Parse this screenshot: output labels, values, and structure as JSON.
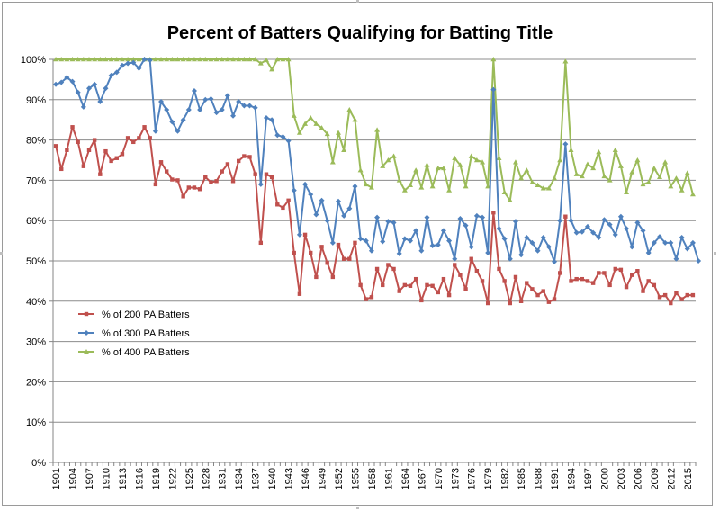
{
  "chart_data": {
    "type": "line",
    "title": "Percent of Batters Qualifying for Batting Title",
    "xlabel": "",
    "ylabel": "",
    "ylim": [
      0,
      100
    ],
    "y_ticks": [
      "0%",
      "10%",
      "20%",
      "30%",
      "40%",
      "50%",
      "60%",
      "70%",
      "80%",
      "90%",
      "100%"
    ],
    "x_tick_labels": [
      "1901",
      "1904",
      "1907",
      "1910",
      "1913",
      "1916",
      "1919",
      "1922",
      "1925",
      "1928",
      "1931",
      "1934",
      "1937",
      "1940",
      "1943",
      "1946",
      "1949",
      "1952",
      "1955",
      "1958",
      "1961",
      "1964",
      "1967",
      "1970",
      "1973",
      "1976",
      "1979",
      "1982",
      "1985",
      "1988",
      "1991",
      "1994",
      "1997",
      "2000",
      "2003",
      "2006",
      "2009",
      "2012",
      "2015"
    ],
    "grid": "horizontal",
    "legend_position": "left-middle",
    "x_start": 1901,
    "x_end": 2017,
    "series": [
      {
        "name": "% of 200 PA Batters",
        "color": "#c0504d",
        "marker": "square",
        "values": [
          78.5,
          72.8,
          77.5,
          83.2,
          79.5,
          73.5,
          77.5,
          80.0,
          71.5,
          77.2,
          74.8,
          75.5,
          76.5,
          80.5,
          79.5,
          80.5,
          83.2,
          80.5,
          69.0,
          74.5,
          72.2,
          70.2,
          70.0,
          66.0,
          68.2,
          68.2,
          67.8,
          70.8,
          69.5,
          69.8,
          72.2,
          74.0,
          69.8,
          74.8,
          76.0,
          75.8,
          71.5,
          54.5,
          71.5,
          70.8,
          64.0,
          63.2,
          65.0,
          52.0,
          41.8,
          56.5,
          52.0,
          46.0,
          53.5,
          49.5,
          46.0,
          54.0,
          50.5,
          50.5,
          54.5,
          44.0,
          40.5,
          41.0,
          48.0,
          44.0,
          49.0,
          48.0,
          42.5,
          44.0,
          43.8,
          45.5,
          40.2,
          44.0,
          43.8,
          42.2,
          45.5,
          41.5,
          49.0,
          46.5,
          43.0,
          50.5,
          47.5,
          45.0,
          39.5,
          62.0,
          48.0,
          45.0,
          39.5,
          46.0,
          40.0,
          44.5,
          43.0,
          41.5,
          42.5,
          39.8,
          40.5,
          47.0,
          61.0,
          45.0,
          45.5,
          45.5,
          45.0,
          44.5,
          47.0,
          47.0,
          44.0,
          48.0,
          47.8,
          43.5,
          46.5,
          47.5,
          42.5,
          45.0,
          44.0,
          41.0,
          41.5,
          39.5,
          42.0,
          40.5,
          41.5,
          41.5
        ]
      },
      {
        "name": "% of 300 PA Batters",
        "color": "#4f81bd",
        "marker": "diamond",
        "values": [
          93.8,
          94.3,
          95.5,
          94.5,
          91.8,
          88.2,
          92.8,
          93.8,
          89.5,
          92.8,
          96.0,
          96.8,
          98.5,
          99.0,
          99.2,
          97.8,
          100.0,
          99.8,
          82.2,
          89.5,
          87.5,
          84.5,
          82.2,
          85.0,
          87.5,
          92.2,
          87.5,
          90.0,
          90.2,
          86.8,
          87.5,
          91.0,
          86.0,
          89.5,
          88.5,
          88.5,
          88.0,
          69.0,
          85.5,
          85.0,
          81.2,
          80.8,
          79.8,
          67.5,
          56.5,
          69.0,
          66.5,
          61.5,
          65.0,
          60.0,
          54.5,
          64.8,
          61.2,
          63.0,
          68.5,
          55.5,
          55.0,
          52.5,
          60.8,
          54.8,
          59.8,
          59.5,
          51.8,
          55.5,
          55.0,
          57.5,
          52.5,
          60.8,
          53.8,
          54.0,
          57.5,
          55.0,
          50.5,
          60.5,
          58.8,
          53.5,
          61.2,
          60.8,
          52.0,
          92.5,
          58.0,
          55.5,
          50.5,
          59.8,
          51.5,
          55.8,
          54.5,
          52.5,
          55.8,
          53.5,
          49.8,
          60.0,
          79.0,
          60.0,
          57.0,
          57.2,
          58.5,
          57.0,
          55.8,
          60.2,
          59.0,
          56.5,
          61.0,
          58.0,
          53.5,
          59.5,
          57.5,
          52.0,
          54.5,
          56.0,
          54.5,
          54.5,
          50.5,
          55.8,
          53.0,
          54.5,
          50.0
        ]
      },
      {
        "name": "% of 400 PA Batters",
        "color": "#9bbb59",
        "marker": "triangle",
        "values": [
          100,
          100,
          100,
          100,
          100,
          100,
          100,
          100,
          100,
          100,
          100,
          100,
          100,
          100,
          100,
          100,
          100,
          100,
          100,
          100,
          100,
          100,
          100,
          100,
          100,
          100,
          100,
          100,
          100,
          100,
          100,
          100,
          100,
          100,
          100,
          100,
          100,
          99.0,
          99.8,
          97.5,
          100,
          100,
          100,
          86.0,
          81.8,
          84.0,
          85.5,
          84.0,
          83.0,
          81.5,
          74.5,
          81.8,
          77.5,
          87.5,
          85.0,
          72.5,
          69.0,
          68.2,
          82.5,
          73.5,
          75.0,
          76.0,
          70.0,
          67.5,
          68.8,
          72.5,
          68.2,
          73.8,
          68.5,
          73.0,
          73.0,
          67.5,
          75.5,
          73.8,
          68.5,
          76.0,
          75.0,
          74.5,
          68.5,
          100.0,
          75.5,
          67.0,
          65.0,
          74.5,
          70.5,
          72.5,
          69.5,
          68.8,
          68.0,
          68.0,
          70.5,
          75.0,
          99.5,
          77.5,
          71.5,
          71.0,
          74.0,
          73.0,
          77.0,
          71.0,
          70.0,
          77.5,
          73.5,
          67.0,
          72.0,
          75.0,
          69.0,
          69.5,
          73.0,
          70.8,
          74.5,
          68.5,
          70.5,
          67.5,
          71.8,
          66.5
        ]
      }
    ]
  }
}
